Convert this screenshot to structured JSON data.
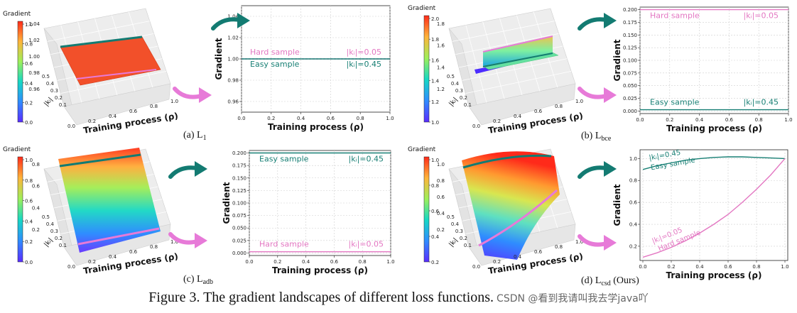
{
  "figure": {
    "caption": "Figure 3. The gradient landscapes of different loss functions.",
    "watermark": "CSDN @看到我请叫我去学java吖"
  },
  "colorbar_title": "Gradient",
  "common_3d_xlabel": "Training process (ρ)",
  "common_3d_x_ticks": [
    "0.0",
    "0.2",
    "0.4",
    "0.6",
    "0.8",
    "1.0"
  ],
  "common_3d_ki_ticks": [
    "0.1",
    "0.2",
    "0.3",
    "0.4",
    "0.5"
  ],
  "ki_symbol": "|kᵢ|",
  "panels": [
    {
      "id": "a",
      "label": "(a) L",
      "sub": "1",
      "surface": "flat",
      "colorbar_ticks": [
        "1.0",
        "0.8",
        "0.6",
        "0.4",
        "0.2",
        "0.0"
      ],
      "zaxis_ticks": [
        "1.04",
        "1.02",
        "1.00",
        "0.98",
        "0.96"
      ]
    },
    {
      "id": "b",
      "label": "(b) L",
      "sub": "bce",
      "surface": "bce",
      "colorbar_ticks": [
        "2.0",
        "1.8",
        "1.6",
        "1.4",
        "1.2",
        "1.0"
      ],
      "zaxis_ticks": [
        "1.8",
        "1.6",
        "1.4",
        "1.2"
      ]
    },
    {
      "id": "c",
      "label": "(c) L",
      "sub": "adb",
      "surface": "adb",
      "colorbar_ticks": [
        "1.0",
        "0.8",
        "0.6",
        "0.4",
        "0.2",
        "0.0"
      ],
      "zaxis_ticks": [
        "0.8",
        "0.6",
        "0.4",
        "0.2"
      ]
    },
    {
      "id": "d",
      "label": "(d) L",
      "sub": "csd",
      "suffix": " (Ours)",
      "surface": "csd",
      "colorbar_ticks": [
        "1.0",
        "0.8",
        "0.6",
        "0.4",
        "0.2"
      ],
      "zaxis_ticks": [
        "1.0",
        "0.8",
        "0.6",
        "0.4",
        "0.2"
      ]
    }
  ],
  "chart_data": [
    {
      "type": "line",
      "panel": "a",
      "xlabel": "Training process (ρ)",
      "ylabel": "Gradient",
      "xlim": [
        0,
        1
      ],
      "ylim": [
        0.95,
        1.05
      ],
      "x_ticks": [
        "0.0",
        "0.2",
        "0.4",
        "0.6",
        "0.8",
        "1.0"
      ],
      "y_ticks": [
        "0.96",
        "0.98",
        "1.00",
        "1.02",
        "1.04"
      ],
      "grid": true,
      "series": [
        {
          "name": "Hard sample",
          "ki_label": "|kᵢ|=0.05",
          "color": "#e377c2",
          "dashed": true,
          "x": [
            0,
            1
          ],
          "y": [
            1.0,
            1.0
          ]
        },
        {
          "name": "Easy sample",
          "ki_label": "|kᵢ|=0.45",
          "color": "#177f74",
          "dashed": false,
          "x": [
            0,
            1
          ],
          "y": [
            1.0,
            1.0
          ]
        }
      ]
    },
    {
      "type": "line",
      "panel": "b",
      "xlabel": "Training process (ρ)",
      "ylabel": "Gradient",
      "xlim": [
        0,
        1
      ],
      "ylim": [
        -0.005,
        0.205
      ],
      "x_ticks": [
        "0.0",
        "0.2",
        "0.4",
        "0.6",
        "0.8",
        "1.0"
      ],
      "y_ticks": [
        "0.000",
        "0.025",
        "0.050",
        "0.075",
        "0.100",
        "0.125",
        "0.150",
        "0.175",
        "0.200"
      ],
      "grid": true,
      "series": [
        {
          "name": "Hard sample",
          "ki_label": "|kᵢ|=0.05",
          "color": "#e377c2",
          "dashed": false,
          "x": [
            0,
            1
          ],
          "y": [
            0.2,
            0.2
          ]
        },
        {
          "name": "Easy sample",
          "ki_label": "|kᵢ|=0.45",
          "color": "#177f74",
          "dashed": false,
          "x": [
            0,
            1
          ],
          "y": [
            0.0025,
            0.0025
          ]
        }
      ]
    },
    {
      "type": "line",
      "panel": "c",
      "xlabel": "Training process (ρ)",
      "ylabel": "Gradient",
      "xlim": [
        0,
        1
      ],
      "ylim": [
        -0.005,
        0.205
      ],
      "x_ticks": [
        "0.0",
        "0.2",
        "0.4",
        "0.6",
        "0.8",
        "1.0"
      ],
      "y_ticks": [
        "0.000",
        "0.025",
        "0.050",
        "0.075",
        "0.100",
        "0.125",
        "0.150",
        "0.175",
        "0.200"
      ],
      "grid": true,
      "series": [
        {
          "name": "Easy sample",
          "ki_label": "|kᵢ|=0.45",
          "color": "#177f74",
          "dashed": false,
          "x": [
            0,
            1
          ],
          "y": [
            0.2,
            0.2
          ]
        },
        {
          "name": "Hard sample",
          "ki_label": "|kᵢ|=0.05",
          "color": "#e377c2",
          "dashed": false,
          "x": [
            0,
            1
          ],
          "y": [
            0.0025,
            0.0025
          ]
        }
      ]
    },
    {
      "type": "line",
      "panel": "d",
      "xlabel": "Training process (ρ)",
      "ylabel": "Gradient",
      "xlim": [
        -0.02,
        1.02
      ],
      "ylim": [
        0.07,
        1.08
      ],
      "x_ticks": [
        "0.0",
        "0.2",
        "0.4",
        "0.6",
        "0.8",
        "1.0"
      ],
      "y_ticks": [
        "0.2",
        "0.4",
        "0.6",
        "0.8",
        "1.0"
      ],
      "grid": true,
      "series": [
        {
          "name": "Easy sample",
          "ki_label": "|kᵢ|=0.45",
          "color": "#177f74",
          "dashed": false,
          "x": [
            0,
            0.1,
            0.2,
            0.3,
            0.4,
            0.5,
            0.6,
            0.7,
            0.8,
            0.9,
            1.0
          ],
          "y": [
            0.9,
            0.935,
            0.96,
            0.985,
            1.0,
            1.01,
            1.015,
            1.015,
            1.01,
            1.005,
            1.0
          ]
        },
        {
          "name": "Hard sample",
          "ki_label": "|kᵢ|=0.05",
          "color": "#e377c2",
          "dashed": false,
          "x": [
            0,
            0.1,
            0.2,
            0.3,
            0.4,
            0.5,
            0.6,
            0.7,
            0.8,
            0.9,
            1.0
          ],
          "y": [
            0.1,
            0.14,
            0.19,
            0.25,
            0.32,
            0.4,
            0.49,
            0.6,
            0.72,
            0.85,
            1.0
          ]
        }
      ]
    }
  ]
}
